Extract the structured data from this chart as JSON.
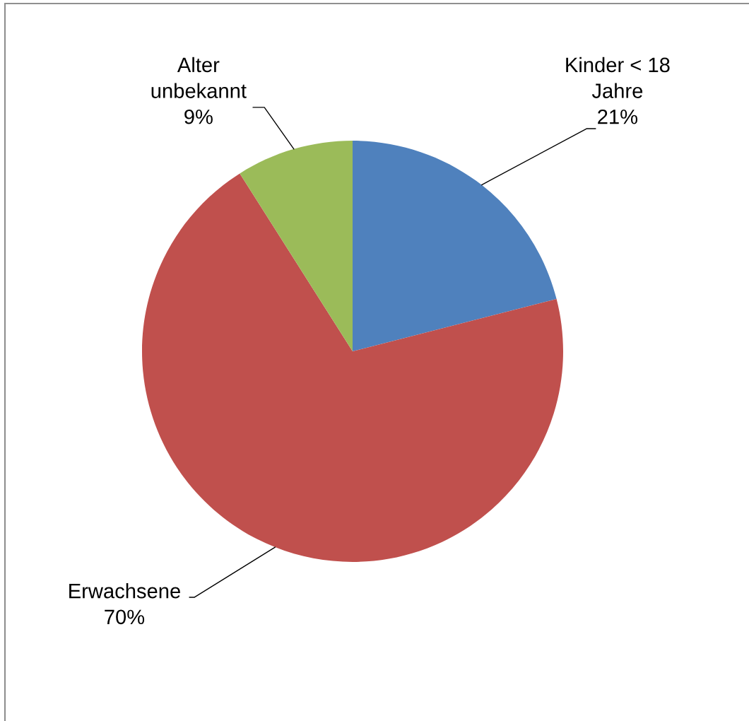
{
  "chart_data": {
    "type": "pie",
    "categories": [
      "Kinder < 18 Jahre",
      "Erwachsene",
      "Alter unbekannt"
    ],
    "values": [
      21,
      70,
      9
    ],
    "colors": [
      "#4f81bd",
      "#c0504d",
      "#9bbb59"
    ],
    "value_labels": [
      "21%",
      "70%",
      "9%"
    ]
  }
}
